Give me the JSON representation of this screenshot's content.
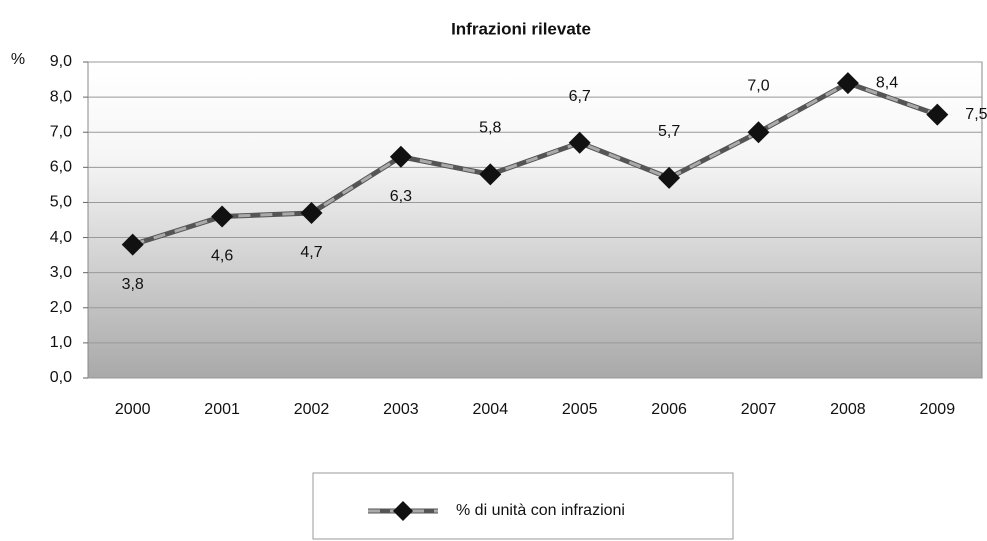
{
  "chart_data": {
    "type": "line",
    "title": "Infrazioni rilevate",
    "y_label": "%",
    "categories": [
      "2000",
      "2001",
      "2002",
      "2003",
      "2004",
      "2005",
      "2006",
      "2007",
      "2008",
      "2009"
    ],
    "series": [
      {
        "name": "% di unità con infrazioni",
        "color": "#555555",
        "values": [
          3.8,
          4.6,
          4.7,
          6.3,
          5.8,
          6.7,
          5.7,
          7.0,
          8.4,
          7.5
        ],
        "value_labels": [
          "3,8",
          "4,6",
          "4,7",
          "6,3",
          "5,8",
          "6,7",
          "5,7",
          "7,0",
          "8,4",
          "7,5"
        ]
      }
    ],
    "ylim": [
      0,
      9
    ],
    "yticks": [
      {
        "value": 0,
        "label": "0,0"
      },
      {
        "value": 1,
        "label": "1,0"
      },
      {
        "value": 2,
        "label": "2,0"
      },
      {
        "value": 3,
        "label": "3,0"
      },
      {
        "value": 4,
        "label": "4,0"
      },
      {
        "value": 5,
        "label": "5,0"
      },
      {
        "value": 6,
        "label": "6,0"
      },
      {
        "value": 7,
        "label": "7,0"
      },
      {
        "value": 8,
        "label": "8,0"
      },
      {
        "value": 9,
        "label": "9,0"
      }
    ],
    "grid": true,
    "legend": "bottom"
  }
}
